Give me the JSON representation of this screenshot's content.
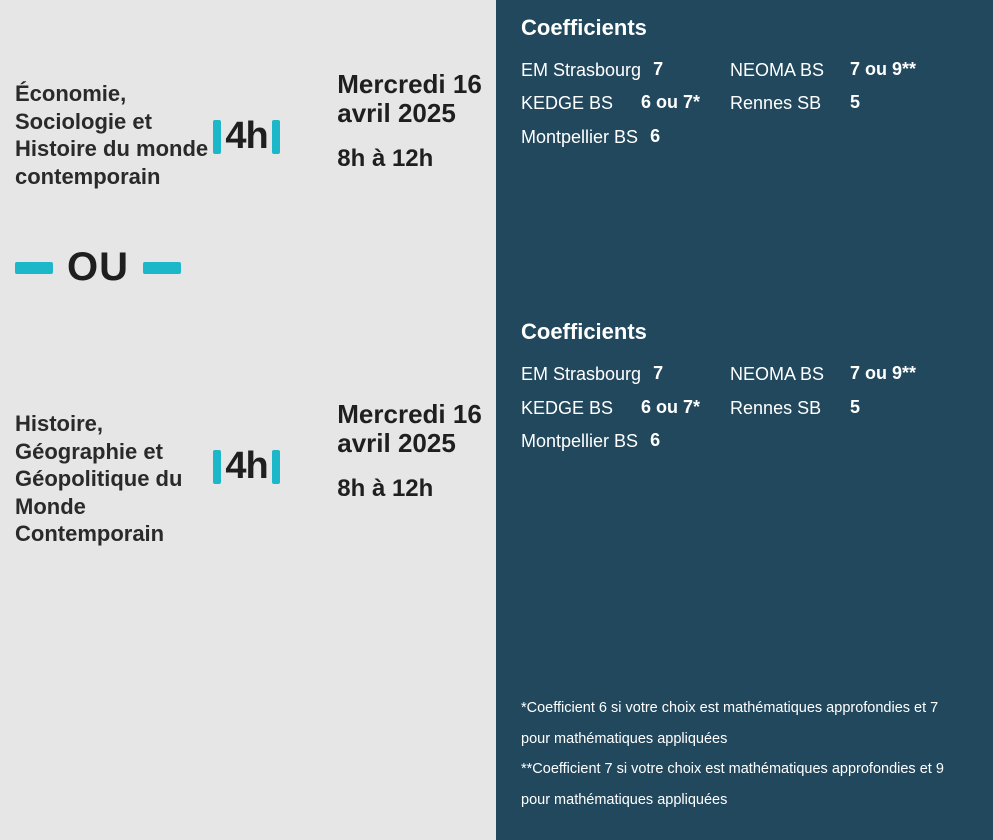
{
  "colors": {
    "left_bg": "#e7e6e6",
    "right_bg": "#22485d",
    "accent": "#1cb8c9",
    "text_dark": "#1f1f1f",
    "text_light": "#ffffff"
  },
  "subjects": [
    {
      "name": "Économie, Sociologie et Histoire du monde contemporain",
      "duration": "4h",
      "date": "Mercredi 16 avril 2025",
      "time": "8h à 12h"
    },
    {
      "name": "Histoire, Géographie et Géopolitique du Monde Contemporain",
      "duration": "4h",
      "date": "Mercredi 16 avril 2025",
      "time": "8h à 12h"
    }
  ],
  "separator": "OU",
  "coef_title": "Coefficients",
  "coef_blocks": [
    {
      "left": [
        {
          "label": "EM Strasbourg",
          "value": "7"
        },
        {
          "label": "KEDGE BS",
          "value": "6 ou 7*"
        },
        {
          "label": "Montpellier BS",
          "value": "6"
        }
      ],
      "right": [
        {
          "label": "NEOMA BS",
          "value": "7 ou 9**"
        },
        {
          "label": "Rennes SB",
          "value": "5"
        }
      ]
    },
    {
      "left": [
        {
          "label": "EM Strasbourg",
          "value": "7"
        },
        {
          "label": "KEDGE BS",
          "value": "6 ou 7*"
        },
        {
          "label": "Montpellier BS",
          "value": "6"
        }
      ],
      "right": [
        {
          "label": "NEOMA BS",
          "value": "7 ou 9**"
        },
        {
          "label": "Rennes SB",
          "value": "5"
        }
      ]
    }
  ],
  "footnotes": [
    "*Coefficient 6 si votre choix est mathématiques approfondies et 7 pour mathématiques appliquées",
    "**Coefficient 7 si votre choix est mathématiques approfondies et 9 pour mathématiques appliquées"
  ]
}
